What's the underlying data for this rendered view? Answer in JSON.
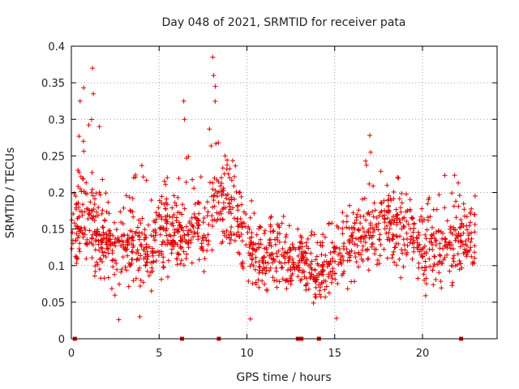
{
  "colors": {
    "series": "#e00000",
    "grid": "#a0a0a0",
    "axis": "#000000"
  },
  "chart_data": {
    "type": "scatter",
    "title": "Day 048 of 2021, SRMTID for receiver pata",
    "xlabel": "GPS time / hours",
    "ylabel": "SRMTID / TECUs",
    "xlim": [
      0,
      24.25
    ],
    "ylim": [
      0,
      0.4
    ],
    "xticks": [
      0,
      5,
      10,
      15,
      20
    ],
    "xtick_labels": [
      "0",
      "5",
      "10",
      "15",
      "20"
    ],
    "yticks": [
      0,
      0.05,
      0.1,
      0.15,
      0.2,
      0.25,
      0.3,
      0.35,
      0.4
    ],
    "ytick_labels": [
      "0",
      "0.05",
      "0.1",
      "0.15",
      "0.2",
      "0.25",
      "0.3",
      "0.35",
      "0.4"
    ],
    "grid": true,
    "marker": "+",
    "series": [
      {
        "name": "SRMTID",
        "hourly_profile": {
          "x": [
            0,
            0.5,
            1,
            1.5,
            2,
            2.5,
            3,
            3.5,
            4,
            4.5,
            5,
            5.5,
            6,
            6.5,
            7,
            7.5,
            8,
            8.5,
            9,
            9.5,
            10,
            10.5,
            11,
            11.5,
            12,
            12.5,
            13,
            13.5,
            14,
            14.5,
            15,
            15.5,
            16,
            16.5,
            17,
            17.5,
            18,
            18.5,
            19,
            19.5,
            20,
            20.5,
            21,
            21.5,
            22,
            22.5,
            23
          ],
          "median": [
            0.14,
            0.17,
            0.16,
            0.14,
            0.12,
            0.11,
            0.12,
            0.13,
            0.12,
            0.11,
            0.14,
            0.15,
            0.14,
            0.13,
            0.15,
            0.14,
            0.17,
            0.19,
            0.18,
            0.16,
            0.13,
            0.11,
            0.1,
            0.11,
            0.11,
            0.1,
            0.11,
            0.09,
            0.08,
            0.09,
            0.1,
            0.11,
            0.13,
            0.13,
            0.14,
            0.14,
            0.15,
            0.15,
            0.14,
            0.13,
            0.11,
            0.12,
            0.12,
            0.12,
            0.13,
            0.13,
            0.14
          ],
          "min": [
            0.09,
            0.08,
            0.06,
            0.05,
            0.05,
            0.05,
            0.06,
            0.06,
            0.05,
            0.06,
            0.07,
            0.07,
            0.07,
            0.07,
            0.08,
            0.08,
            0.09,
            0.1,
            0.09,
            0.08,
            0.06,
            0.05,
            0.04,
            0.05,
            0.05,
            0.05,
            0.05,
            0.04,
            0.03,
            0.04,
            0.04,
            0.05,
            0.06,
            0.06,
            0.07,
            0.07,
            0.08,
            0.07,
            0.06,
            0.05,
            0.05,
            0.05,
            0.06,
            0.06,
            0.06,
            0.07,
            0.08
          ],
          "max": [
            0.2,
            0.33,
            0.37,
            0.25,
            0.2,
            0.2,
            0.21,
            0.22,
            0.24,
            0.2,
            0.24,
            0.22,
            0.2,
            0.32,
            0.22,
            0.23,
            0.38,
            0.25,
            0.25,
            0.24,
            0.21,
            0.17,
            0.16,
            0.18,
            0.17,
            0.16,
            0.17,
            0.15,
            0.14,
            0.16,
            0.17,
            0.18,
            0.21,
            0.22,
            0.28,
            0.26,
            0.23,
            0.23,
            0.21,
            0.2,
            0.2,
            0.2,
            0.21,
            0.24,
            0.22,
            0.22,
            0.21
          ]
        },
        "notable_points": [
          {
            "x": 0.5,
            "y": 0.325
          },
          {
            "x": 0.7,
            "y": 0.343
          },
          {
            "x": 1.2,
            "y": 0.37
          },
          {
            "x": 1.25,
            "y": 0.335
          },
          {
            "x": 1.6,
            "y": 0.29
          },
          {
            "x": 6.4,
            "y": 0.325
          },
          {
            "x": 6.45,
            "y": 0.3
          },
          {
            "x": 8.05,
            "y": 0.385
          },
          {
            "x": 8.1,
            "y": 0.36
          },
          {
            "x": 8.2,
            "y": 0.345
          },
          {
            "x": 17.0,
            "y": 0.278
          },
          {
            "x": 17.05,
            "y": 0.255
          },
          {
            "x": 2.7,
            "y": 0.026
          },
          {
            "x": 3.9,
            "y": 0.03
          },
          {
            "x": 10.2,
            "y": 0.027
          },
          {
            "x": 15.1,
            "y": 0.028
          }
        ],
        "zero_points_x": [
          0.2,
          6.3,
          8.4,
          12.9,
          13.1,
          14.1,
          22.2
        ]
      }
    ]
  }
}
